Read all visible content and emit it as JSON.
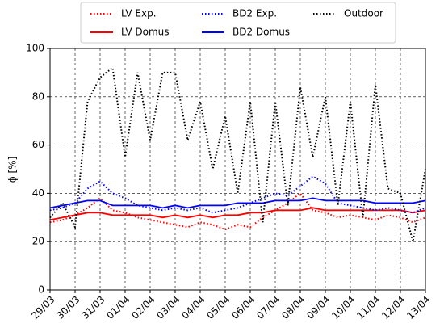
{
  "chart_data": {
    "type": "line",
    "ylabel": "ϕ [%]",
    "x": [
      0,
      0.5,
      1,
      1.5,
      2,
      2.5,
      3,
      3.5,
      4,
      4.5,
      5,
      5.5,
      6,
      6.5,
      7,
      7.5,
      8,
      8.5,
      9,
      9.5,
      10,
      10.5,
      11,
      11.5,
      12,
      12.5,
      13,
      13.5,
      14,
      14.5,
      15
    ],
    "xlim": [
      0,
      15
    ],
    "xticks": [
      {
        "value": 0,
        "label": "29/03"
      },
      {
        "value": 1,
        "label": "30/03"
      },
      {
        "value": 2,
        "label": "31/03"
      },
      {
        "value": 3,
        "label": "01/04"
      },
      {
        "value": 4,
        "label": "02/04"
      },
      {
        "value": 5,
        "label": "03/04"
      },
      {
        "value": 6,
        "label": "04/04"
      },
      {
        "value": 7,
        "label": "05/04"
      },
      {
        "value": 8,
        "label": "06/04"
      },
      {
        "value": 9,
        "label": "07/04"
      },
      {
        "value": 10,
        "label": "08/04"
      },
      {
        "value": 11,
        "label": "09/04"
      },
      {
        "value": 12,
        "label": "10/04"
      },
      {
        "value": 13,
        "label": "11/04"
      },
      {
        "value": 14,
        "label": "12/04"
      },
      {
        "value": 15,
        "label": "13/04"
      }
    ],
    "ylim": [
      0,
      100
    ],
    "yticks": [
      0,
      20,
      40,
      60,
      80,
      100
    ],
    "grid": true,
    "legend": "top",
    "series": [
      {
        "name": "LV Exp.",
        "color": "#ff0000",
        "style": "dotted",
        "values": [
          28,
          29,
          31,
          34,
          38,
          33,
          32,
          30,
          29,
          28,
          27,
          26,
          28,
          27,
          25,
          27,
          26,
          30,
          33,
          36,
          40,
          33,
          32,
          30,
          31,
          30,
          29,
          31,
          30,
          28,
          30
        ]
      },
      {
        "name": "LV Domus",
        "color": "#ff0000",
        "style": "solid",
        "values": [
          29,
          30,
          31,
          32,
          32,
          31,
          31,
          31,
          31,
          30,
          31,
          30,
          31,
          30,
          31,
          31,
          32,
          32,
          33,
          33,
          33,
          34,
          33,
          33,
          33,
          33,
          33,
          33,
          33,
          32,
          33
        ]
      },
      {
        "name": "BD2 Exp.",
        "color": "#0000ff",
        "style": "dotted",
        "values": [
          33,
          34,
          36,
          42,
          45,
          40,
          38,
          35,
          34,
          33,
          34,
          33,
          34,
          32,
          33,
          34,
          36,
          38,
          40,
          39,
          43,
          47,
          44,
          36,
          35,
          34,
          33,
          34,
          33,
          32,
          34
        ]
      },
      {
        "name": "BD2 Domus",
        "color": "#0000ff",
        "style": "solid",
        "values": [
          34,
          35,
          36,
          37,
          37,
          35,
          35,
          35,
          35,
          34,
          35,
          34,
          35,
          35,
          35,
          36,
          36,
          36,
          37,
          37,
          37,
          38,
          37,
          37,
          37,
          37,
          36,
          36,
          36,
          36,
          37
        ]
      },
      {
        "name": "Outdoor",
        "color": "#000000",
        "style": "dotted",
        "values": [
          30,
          36,
          26,
          78,
          88,
          92,
          55,
          90,
          62,
          90,
          90,
          62,
          78,
          50,
          72,
          40,
          78,
          28,
          78,
          35,
          84,
          55,
          80,
          35,
          78,
          30,
          85,
          42,
          40,
          20,
          50
        ]
      }
    ]
  }
}
